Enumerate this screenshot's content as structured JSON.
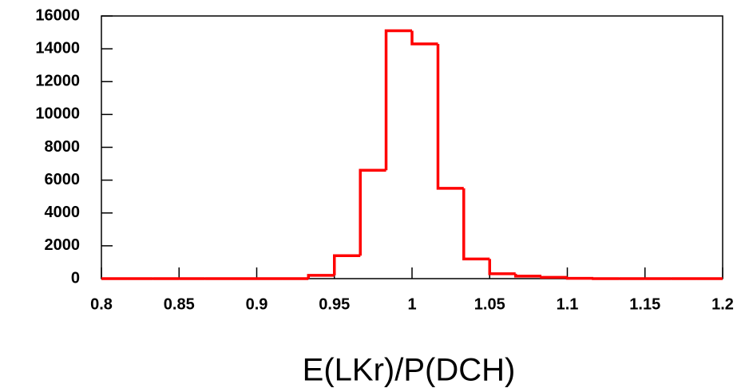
{
  "chart_data": {
    "type": "histogram",
    "x_label": "E(LKr)/P(DCH)",
    "bins": [
      0.8,
      0.8167,
      0.8333,
      0.85,
      0.8667,
      0.8833,
      0.9,
      0.9167,
      0.9333,
      0.95,
      0.9667,
      0.9833,
      1.0,
      1.0167,
      1.0333,
      1.05,
      1.0667,
      1.0833,
      1.1,
      1.1167,
      1.1333,
      1.15,
      1.1667,
      1.1833,
      1.2
    ],
    "values": [
      0,
      0,
      0,
      0,
      0,
      0,
      0,
      0,
      200,
      1400,
      6600,
      15100,
      14300,
      5500,
      1200,
      300,
      150,
      80,
      20,
      0,
      0,
      0,
      0,
      0
    ],
    "color": "#ff0000",
    "xlim": [
      0.8,
      1.2
    ],
    "xticks": [
      0.8,
      0.85,
      0.9,
      0.95,
      1,
      1.05,
      1.1,
      1.15,
      1.2
    ],
    "ylim": [
      0,
      16000
    ],
    "yticks": [
      0,
      2000,
      4000,
      6000,
      8000,
      10000,
      12000,
      14000,
      16000
    ]
  }
}
